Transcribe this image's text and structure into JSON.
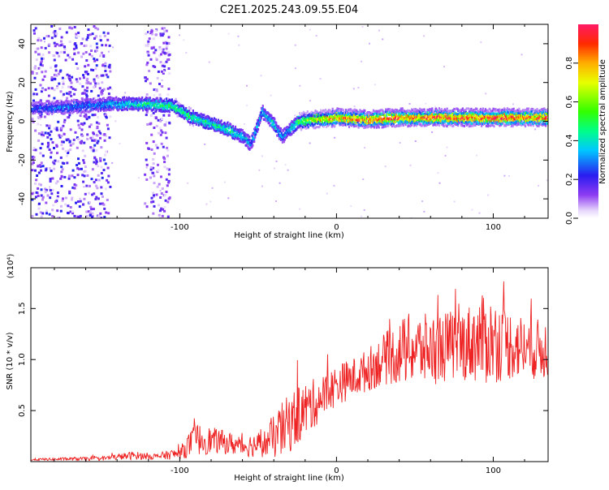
{
  "title": "C2E1.2025.243.09.55.E04",
  "chart_data": [
    {
      "type": "heatmap",
      "xlabel": "Height of straight line (km)",
      "ylabel": "Frequency (Hz)",
      "xlim": [
        -195,
        135
      ],
      "ylim": [
        -50,
        50
      ],
      "x_ticks": [
        -100,
        0,
        100
      ],
      "y_ticks": [
        -40,
        -20,
        0,
        20,
        40
      ],
      "colorbar": {
        "label": "Normalized spectral amplitude",
        "range": [
          0,
          1
        ],
        "ticks": [
          0.0,
          0.2,
          0.4,
          0.6,
          0.8
        ],
        "tick_labels": [
          "0.0",
          "0.2",
          "0.4",
          "0.6",
          "0.8"
        ]
      },
      "ridge": [
        {
          "x": -195,
          "y": 7,
          "amp": 0.25
        },
        {
          "x": -180,
          "y": 7,
          "amp": 0.3
        },
        {
          "x": -160,
          "y": 8,
          "amp": 0.3
        },
        {
          "x": -145,
          "y": 9,
          "amp": 0.35
        },
        {
          "x": -135,
          "y": 9,
          "amp": 0.4
        },
        {
          "x": -120,
          "y": 9,
          "amp": 0.45
        },
        {
          "x": -105,
          "y": 8,
          "amp": 0.5
        },
        {
          "x": -95,
          "y": 3,
          "amp": 0.5
        },
        {
          "x": -85,
          "y": 0,
          "amp": 0.45
        },
        {
          "x": -70,
          "y": -4,
          "amp": 0.45
        },
        {
          "x": -60,
          "y": -8,
          "amp": 0.4
        },
        {
          "x": -55,
          "y": -12,
          "amp": 0.35
        },
        {
          "x": -48,
          "y": 5,
          "amp": 0.35
        },
        {
          "x": -42,
          "y": 0,
          "amp": 0.4
        },
        {
          "x": -35,
          "y": -8,
          "amp": 0.3
        },
        {
          "x": -25,
          "y": 0,
          "amp": 0.5
        },
        {
          "x": -15,
          "y": 1,
          "amp": 0.7
        },
        {
          "x": 0,
          "y": 2,
          "amp": 0.85
        },
        {
          "x": 20,
          "y": 1,
          "amp": 0.9
        },
        {
          "x": 40,
          "y": 2,
          "amp": 0.9
        },
        {
          "x": 60,
          "y": 2,
          "amp": 0.9
        },
        {
          "x": 80,
          "y": 2,
          "amp": 0.9
        },
        {
          "x": 100,
          "y": 2,
          "amp": 0.95
        },
        {
          "x": 120,
          "y": 2,
          "amp": 0.9
        },
        {
          "x": 135,
          "y": 2,
          "amp": 0.9
        }
      ],
      "noise_bands": [
        {
          "x_from": -195,
          "x_to": -145,
          "amp": 0.15
        },
        {
          "x_from": -123,
          "x_to": -107,
          "amp": 0.12
        }
      ]
    },
    {
      "type": "line",
      "xlabel": "Height of straight line (km)",
      "ylabel": "SNR (10 * v/v)",
      "y_multiplier": "(x10⁴)",
      "xlim": [
        -195,
        135
      ],
      "ylim": [
        0,
        1.9
      ],
      "x_ticks": [
        -100,
        0,
        100
      ],
      "y_ticks": [
        0.5,
        1.0,
        1.5
      ],
      "y_tick_labels": [
        "0.5",
        "1.0",
        "1.5"
      ],
      "color": "#ee2222",
      "envelope": [
        {
          "x": -195,
          "mean": 0.02,
          "spread": 0.01
        },
        {
          "x": -150,
          "mean": 0.03,
          "spread": 0.02
        },
        {
          "x": -130,
          "mean": 0.06,
          "spread": 0.04
        },
        {
          "x": -115,
          "mean": 0.05,
          "spread": 0.03
        },
        {
          "x": -100,
          "mean": 0.08,
          "spread": 0.06
        },
        {
          "x": -90,
          "mean": 0.22,
          "spread": 0.16
        },
        {
          "x": -75,
          "mean": 0.2,
          "spread": 0.12
        },
        {
          "x": -60,
          "mean": 0.15,
          "spread": 0.1
        },
        {
          "x": -45,
          "mean": 0.18,
          "spread": 0.14
        },
        {
          "x": -35,
          "mean": 0.3,
          "spread": 0.28
        },
        {
          "x": -25,
          "mean": 0.45,
          "spread": 0.3
        },
        {
          "x": -10,
          "mean": 0.62,
          "spread": 0.22
        },
        {
          "x": 0,
          "mean": 0.75,
          "spread": 0.2
        },
        {
          "x": 15,
          "mean": 0.85,
          "spread": 0.2
        },
        {
          "x": 30,
          "mean": 1.0,
          "spread": 0.25
        },
        {
          "x": 45,
          "mean": 1.1,
          "spread": 0.35
        },
        {
          "x": 60,
          "mean": 1.1,
          "spread": 0.35
        },
        {
          "x": 80,
          "mean": 1.15,
          "spread": 0.35
        },
        {
          "x": 95,
          "mean": 1.2,
          "spread": 0.45
        },
        {
          "x": 110,
          "mean": 1.15,
          "spread": 0.35
        },
        {
          "x": 125,
          "mean": 1.1,
          "spread": 0.3
        },
        {
          "x": 135,
          "mean": 1.1,
          "spread": 0.3
        }
      ]
    }
  ]
}
